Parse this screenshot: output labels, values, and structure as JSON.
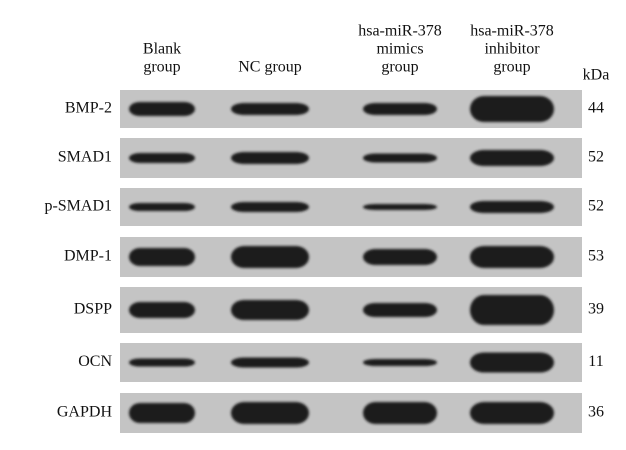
{
  "columns": [
    {
      "lines": [
        "Blank",
        "group"
      ]
    },
    {
      "lines": [
        "NC group"
      ]
    },
    {
      "lines": [
        "hsa-miR-378",
        "mimics",
        "group"
      ]
    },
    {
      "lines": [
        "hsa-miR-378",
        "inhibitor",
        "group"
      ]
    }
  ],
  "size_unit": "kDa",
  "rows": [
    {
      "label": "BMP-2",
      "size": "44"
    },
    {
      "label": "SMAD1",
      "size": "52"
    },
    {
      "label": "p-SMAD1",
      "size": "52"
    },
    {
      "label": "DMP-1",
      "size": "53"
    },
    {
      "label": "DSPP",
      "size": "39"
    },
    {
      "label": "OCN",
      "size": "11"
    },
    {
      "label": "GAPDH",
      "size": "36"
    }
  ]
}
